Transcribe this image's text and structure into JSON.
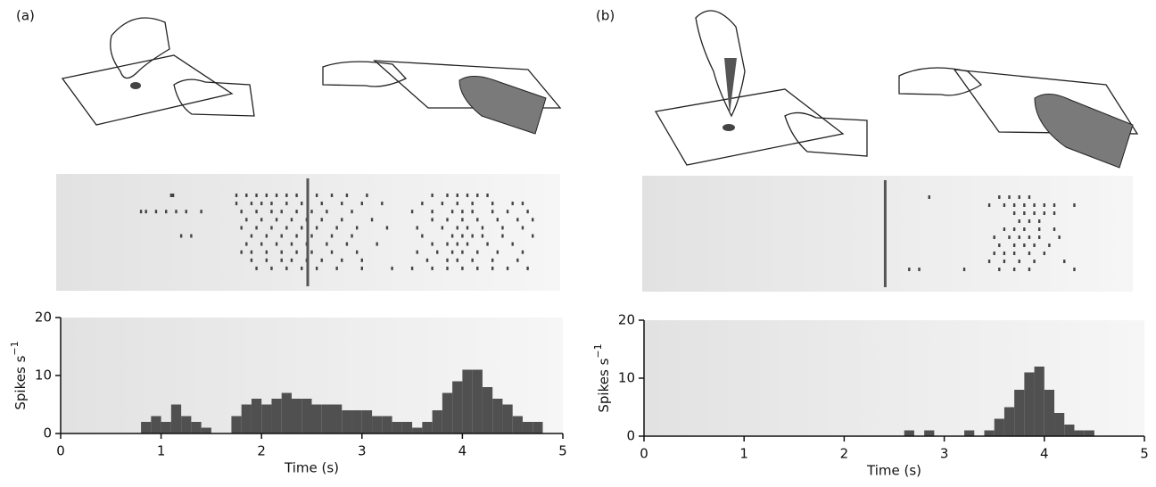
{
  "chart_data": [
    {
      "type": "histogram",
      "panel_label": "(a)",
      "xlabel": "Time (s)",
      "ylabel": "Spikes s",
      "ylabel_sup": "−1",
      "bins": [
        0,
        0.1,
        0.2,
        0.3,
        0.4,
        0.5,
        0.6,
        0.7,
        0.8,
        0.9,
        1,
        1.1,
        1.2,
        1.3,
        1.4,
        1.5,
        1.6,
        1.7,
        1.8,
        1.9,
        2,
        2.1,
        2.2,
        2.3,
        2.4,
        2.5,
        2.6,
        2.7,
        2.8,
        2.9,
        3,
        3.1,
        3.2,
        3.3,
        3.4,
        3.5,
        3.6,
        3.7,
        3.8,
        3.9,
        4,
        4.1,
        4.2,
        4.3,
        4.4,
        4.5,
        4.6,
        4.7,
        4.8,
        4.9,
        5
      ],
      "values": [
        0,
        0,
        0,
        0,
        0,
        0,
        0,
        0,
        2,
        3,
        2,
        5,
        3,
        2,
        1,
        0,
        0,
        3,
        5,
        6,
        5,
        6,
        7,
        6,
        6,
        5,
        5,
        5,
        4,
        4,
        4,
        3,
        3,
        2,
        2,
        1,
        2,
        4,
        7,
        9,
        11,
        11,
        8,
        6,
        5,
        3,
        2,
        2,
        0,
        0
      ],
      "color": "#505050",
      "xlim": [
        0,
        5
      ],
      "xticks": [
        0,
        1,
        2,
        3,
        4,
        5
      ],
      "ylim": [
        0,
        20
      ],
      "yticks": [
        0,
        10,
        20
      ],
      "raster": {
        "event_time": 2.46,
        "trials": [
          [
            1.1,
            1.12,
            1.75,
            1.85,
            1.95,
            2.05,
            2.15,
            2.25,
            2.35,
            2.55,
            2.7,
            2.85,
            3.05,
            3.7,
            3.85,
            3.95,
            4.05,
            4.15,
            4.25
          ],
          [
            1.75,
            1.9,
            2.0,
            2.1,
            2.25,
            2.4,
            2.6,
            2.8,
            3.0,
            3.2,
            3.6,
            3.8,
            3.95,
            4.1,
            4.3,
            4.5,
            4.6
          ],
          [
            0.8,
            0.85,
            0.95,
            1.05,
            1.15,
            1.25,
            1.4,
            1.8,
            1.95,
            2.1,
            2.2,
            2.35,
            2.5,
            2.65,
            2.9,
            3.5,
            3.7,
            3.9,
            4.0,
            4.1,
            4.3,
            4.45,
            4.65
          ],
          [
            1.85,
            2.0,
            2.15,
            2.3,
            2.45,
            2.6,
            2.8,
            3.1,
            3.7,
            3.85,
            4.0,
            4.15,
            4.35,
            4.55,
            4.7
          ],
          [
            1.8,
            1.95,
            2.1,
            2.25,
            2.4,
            2.55,
            2.75,
            2.95,
            3.25,
            3.55,
            3.8,
            3.95,
            4.05,
            4.2,
            4.4,
            4.6
          ],
          [
            1.2,
            1.3,
            1.9,
            2.05,
            2.2,
            2.35,
            2.5,
            2.7,
            2.9,
            3.6,
            3.9,
            4.0,
            4.1,
            4.2,
            4.4,
            4.7
          ],
          [
            1.85,
            2.0,
            2.15,
            2.3,
            2.45,
            2.65,
            2.85,
            3.15,
            3.7,
            3.85,
            3.95,
            4.05,
            4.25,
            4.5
          ],
          [
            1.8,
            1.9,
            2.05,
            2.2,
            2.35,
            2.5,
            2.7,
            2.95,
            3.55,
            3.75,
            3.9,
            4.0,
            4.15,
            4.35,
            4.6
          ],
          [
            1.9,
            2.05,
            2.2,
            2.3,
            2.45,
            2.6,
            2.8,
            3.0,
            3.65,
            3.85,
            3.95,
            4.1,
            4.3,
            4.55
          ],
          [
            1.95,
            2.1,
            2.25,
            2.4,
            2.55,
            2.75,
            3.0,
            3.3,
            3.5,
            3.7,
            3.85,
            4.0,
            4.15,
            4.3,
            4.45,
            4.65
          ]
        ]
      }
    },
    {
      "type": "histogram",
      "panel_label": "(b)",
      "xlabel": "Time (s)",
      "ylabel": "Spikes s",
      "ylabel_sup": "−1",
      "bins": [
        0,
        0.1,
        0.2,
        0.3,
        0.4,
        0.5,
        0.6,
        0.7,
        0.8,
        0.9,
        1,
        1.1,
        1.2,
        1.3,
        1.4,
        1.5,
        1.6,
        1.7,
        1.8,
        1.9,
        2,
        2.1,
        2.2,
        2.3,
        2.4,
        2.5,
        2.6,
        2.7,
        2.8,
        2.9,
        3,
        3.1,
        3.2,
        3.3,
        3.4,
        3.5,
        3.6,
        3.7,
        3.8,
        3.9,
        4,
        4.1,
        4.2,
        4.3,
        4.4,
        4.5,
        4.6,
        4.7,
        4.8,
        4.9,
        5
      ],
      "values": [
        0,
        0,
        0,
        0,
        0,
        0,
        0,
        0,
        0,
        0,
        0,
        0,
        0,
        0,
        0,
        0,
        0,
        0,
        0,
        0,
        0,
        0,
        0,
        0,
        0,
        0,
        1,
        0,
        1,
        0,
        0,
        0,
        1,
        0,
        1,
        3,
        5,
        8,
        11,
        12,
        8,
        4,
        2,
        1,
        1,
        0,
        0,
        0,
        0,
        0
      ],
      "color": "#505050",
      "xlim": [
        0,
        5
      ],
      "xticks": [
        0,
        1,
        2,
        3,
        4,
        5
      ],
      "ylim": [
        0,
        20
      ],
      "yticks": [
        0,
        10,
        20
      ],
      "raster": {
        "event_time": 2.41,
        "trials": [
          [
            2.85,
            3.55,
            3.65,
            3.75,
            3.85
          ],
          [
            3.45,
            3.6,
            3.7,
            3.8,
            3.9,
            4.0,
            4.1,
            4.3
          ],
          [
            3.7,
            3.8,
            3.9,
            4.0,
            4.1
          ],
          [
            3.75,
            3.85,
            3.95
          ],
          [
            3.6,
            3.7,
            3.8,
            3.95,
            4.1
          ],
          [
            3.5,
            3.65,
            3.75,
            3.85,
            3.95,
            4.15
          ],
          [
            3.55,
            3.7,
            3.8,
            3.9,
            4.05
          ],
          [
            3.5,
            3.6,
            3.7,
            3.85,
            4.0
          ],
          [
            3.45,
            3.6,
            3.75,
            3.9,
            4.2
          ],
          [
            2.65,
            2.75,
            3.2,
            3.55,
            3.7,
            3.85,
            4.3
          ]
        ]
      }
    }
  ]
}
